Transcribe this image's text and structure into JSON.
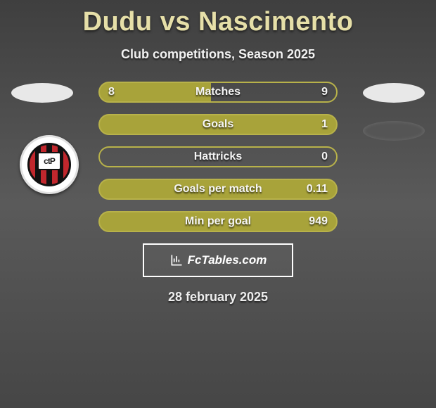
{
  "title": "Dudu vs Nascimento",
  "subtitle": "Club competitions, Season 2025",
  "date": "28 february 2025",
  "brand": "FcTables.com",
  "colors": {
    "title": "#e6dfa8",
    "bar_fill": "#a8a33a",
    "bar_border": "#b8b24a",
    "badge_red": "#c1272d",
    "badge_black": "#111111"
  },
  "badge_text": "ctP",
  "rows": [
    {
      "label": "Matches",
      "left": "8",
      "right": "9",
      "fill": "half",
      "split_pct": 47
    },
    {
      "label": "Goals",
      "left": "",
      "right": "1",
      "fill": "full"
    },
    {
      "label": "Hattricks",
      "left": "",
      "right": "0",
      "fill": "hollow"
    },
    {
      "label": "Goals per match",
      "left": "",
      "right": "0.11",
      "fill": "full"
    },
    {
      "label": "Min per goal",
      "left": "",
      "right": "949",
      "fill": "full"
    }
  ]
}
